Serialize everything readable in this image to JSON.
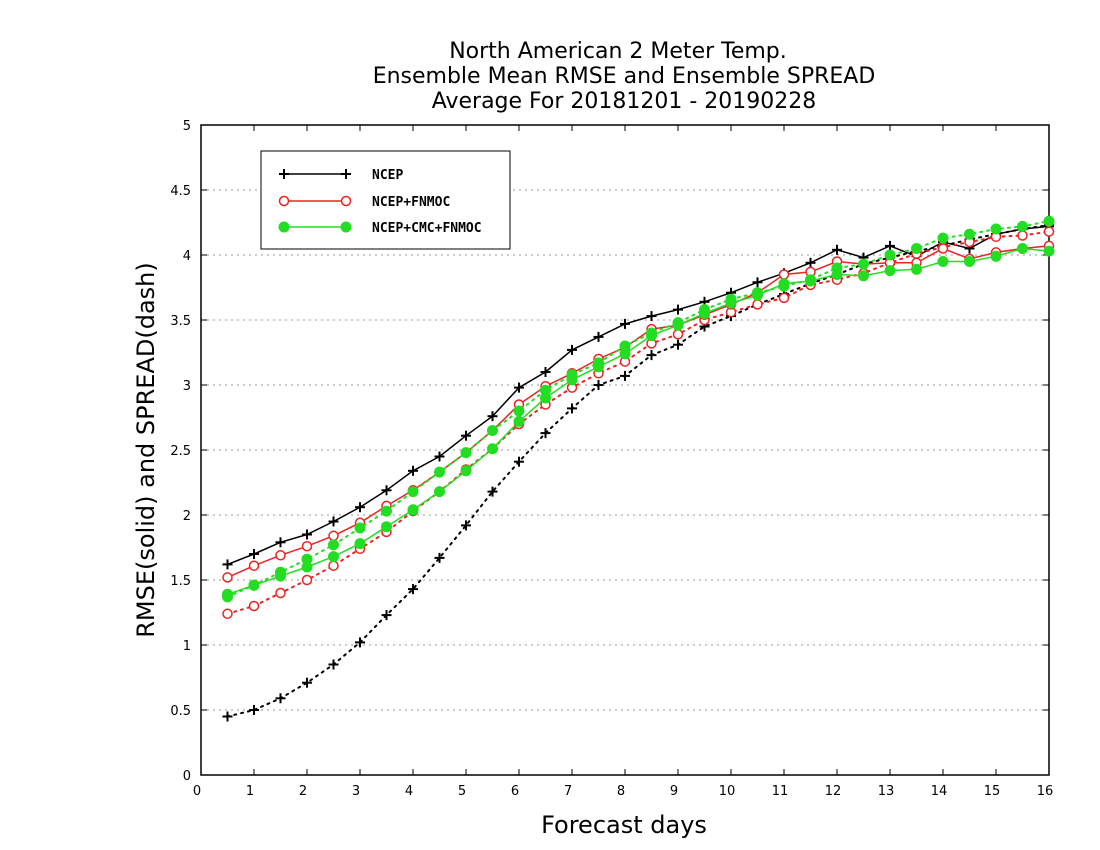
{
  "chart_data": {
    "type": "line",
    "title_lines": [
      "North American 2 Meter Temp.",
      "Ensemble Mean RMSE and Ensemble SPREAD",
      "Average For 20181201 - 20190228"
    ],
    "xlabel": "Forecast days",
    "ylabel": "RMSE(solid) and SPREAD(dash)",
    "xlim": [
      0,
      16
    ],
    "ylim": [
      0,
      5
    ],
    "xticks": [
      "0",
      "1",
      "2",
      "3",
      "4",
      "5",
      "6",
      "7",
      "8",
      "9",
      "10",
      "11",
      "12",
      "13",
      "14",
      "15",
      "16"
    ],
    "yticks": [
      "0",
      "0.5",
      "1",
      "1.5",
      "2",
      "2.5",
      "3",
      "3.5",
      "4",
      "4.5",
      "5"
    ],
    "grid": "horizontal dotted",
    "legend_position": "top-left",
    "x": [
      0.5,
      1,
      1.5,
      2,
      2.5,
      3,
      3.5,
      4,
      4.5,
      5,
      5.5,
      6,
      6.5,
      7,
      7.5,
      8,
      8.5,
      9,
      9.5,
      10,
      10.5,
      11,
      11.5,
      12,
      12.5,
      13,
      13.5,
      14,
      14.5,
      15,
      15.5,
      16
    ],
    "series": [
      {
        "name": "NCEP",
        "color": "#000000",
        "marker": "plus",
        "rmse": [
          1.62,
          1.7,
          1.79,
          1.85,
          1.95,
          2.06,
          2.19,
          2.34,
          2.45,
          2.61,
          2.76,
          2.98,
          3.1,
          3.27,
          3.37,
          3.47,
          3.53,
          3.58,
          3.64,
          3.71,
          3.79,
          3.86,
          3.94,
          4.04,
          3.98,
          4.07,
          3.99,
          4.1,
          4.05,
          4.16,
          4.2,
          4.22
        ],
        "spread": [
          0.45,
          0.5,
          0.59,
          0.71,
          0.85,
          1.02,
          1.23,
          1.43,
          1.67,
          1.92,
          2.18,
          2.41,
          2.63,
          2.82,
          3.0,
          3.07,
          3.23,
          3.31,
          3.45,
          3.53,
          3.62,
          3.7,
          3.78,
          3.85,
          3.93,
          3.98,
          4.03,
          4.07,
          4.12,
          4.16,
          4.2,
          4.23
        ]
      },
      {
        "name": "NCEP+FNMOC",
        "color": "#ee2222",
        "marker": "open-circle",
        "rmse": [
          1.52,
          1.61,
          1.69,
          1.76,
          1.84,
          1.94,
          2.07,
          2.19,
          2.33,
          2.48,
          2.65,
          2.85,
          2.99,
          3.09,
          3.2,
          3.29,
          3.43,
          3.46,
          3.54,
          3.62,
          3.71,
          3.85,
          3.87,
          3.95,
          3.93,
          3.94,
          3.94,
          4.05,
          3.97,
          4.02,
          4.05,
          4.07
        ],
        "spread": [
          1.24,
          1.3,
          1.4,
          1.5,
          1.61,
          1.74,
          1.87,
          2.03,
          2.18,
          2.35,
          2.51,
          2.7,
          2.85,
          2.98,
          3.09,
          3.18,
          3.32,
          3.39,
          3.5,
          3.56,
          3.62,
          3.67,
          3.77,
          3.81,
          3.86,
          3.94,
          4.01,
          4.06,
          4.1,
          4.14,
          4.15,
          4.18
        ]
      },
      {
        "name": "NCEP+CMC+FNMOC",
        "color": "#22dd22",
        "marker": "filled-circle",
        "rmse": [
          1.39,
          1.46,
          1.53,
          1.6,
          1.68,
          1.78,
          1.91,
          2.04,
          2.18,
          2.34,
          2.51,
          2.72,
          2.9,
          3.04,
          3.14,
          3.24,
          3.38,
          3.46,
          3.55,
          3.63,
          3.69,
          3.78,
          3.8,
          3.85,
          3.84,
          3.88,
          3.89,
          3.95,
          3.95,
          3.99,
          4.05,
          4.03
        ],
        "spread": [
          1.37,
          1.46,
          1.56,
          1.66,
          1.77,
          1.9,
          2.03,
          2.18,
          2.33,
          2.48,
          2.65,
          2.8,
          2.96,
          3.08,
          3.17,
          3.3,
          3.4,
          3.48,
          3.58,
          3.66,
          3.71,
          3.76,
          3.81,
          3.9,
          3.93,
          4.0,
          4.05,
          4.13,
          4.16,
          4.2,
          4.22,
          4.26
        ]
      }
    ]
  }
}
